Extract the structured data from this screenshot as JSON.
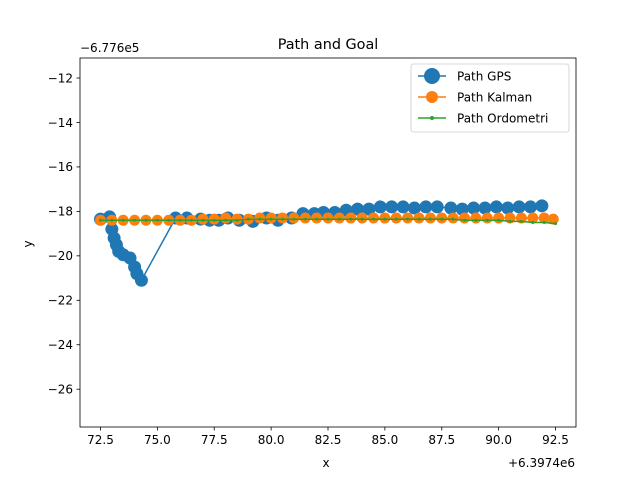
{
  "chart_data": {
    "type": "line",
    "title": "Path and Goal",
    "xlabel": "x",
    "ylabel": "y",
    "x_offset_label": "+6.3974e6",
    "y_offset_label": "−6.776e5",
    "xlim": [
      71.6,
      93.4
    ],
    "ylim": [
      -27.7,
      -11.1
    ],
    "xticks": [
      72.5,
      75.0,
      77.5,
      80.0,
      82.5,
      85.0,
      87.5,
      90.0,
      92.5
    ],
    "xtick_labels": [
      "72.5",
      "75.0",
      "77.5",
      "80.0",
      "82.5",
      "85.0",
      "87.5",
      "90.0",
      "92.5"
    ],
    "yticks": [
      -26,
      -24,
      -22,
      -20,
      -18,
      -16,
      -14,
      -12
    ],
    "ytick_labels": [
      "−26",
      "−24",
      "−22",
      "−20",
      "−18",
      "−16",
      "−14",
      "−12"
    ],
    "grid": false,
    "legend_position": "top-right",
    "series": [
      {
        "name": "Path GPS",
        "color": "#1f77b4",
        "marker": "circle-large",
        "x": [
          72.5,
          72.9,
          73.0,
          73.1,
          73.2,
          73.3,
          73.5,
          73.8,
          74.0,
          74.1,
          74.3,
          75.8,
          76.3,
          76.9,
          77.3,
          77.7,
          78.1,
          78.6,
          79.2,
          79.8,
          80.3,
          80.9,
          81.4,
          81.9,
          82.3,
          82.8,
          83.3,
          83.8,
          84.3,
          84.8,
          85.3,
          85.8,
          86.3,
          86.8,
          87.3,
          87.9,
          88.4,
          88.9,
          89.4,
          89.9,
          90.4,
          90.9,
          91.4,
          91.9
        ],
        "y": [
          -18.35,
          -18.25,
          -18.8,
          -19.2,
          -19.5,
          -19.8,
          -19.95,
          -20.1,
          -20.5,
          -20.8,
          -21.1,
          -18.3,
          -18.3,
          -18.35,
          -18.4,
          -18.4,
          -18.3,
          -18.4,
          -18.45,
          -18.3,
          -18.4,
          -18.3,
          -18.1,
          -18.1,
          -18.05,
          -18.05,
          -17.95,
          -17.9,
          -17.9,
          -17.8,
          -17.8,
          -17.8,
          -17.85,
          -17.8,
          -17.8,
          -17.85,
          -17.9,
          -17.85,
          -17.85,
          -17.8,
          -17.85,
          -17.8,
          -17.8,
          -17.75
        ]
      },
      {
        "name": "Path Kalman",
        "color": "#ff7f0e",
        "marker": "circle-medium",
        "x": [
          72.5,
          73.0,
          73.5,
          74.0,
          74.5,
          75.0,
          75.5,
          76.0,
          76.5,
          77.0,
          77.5,
          78.0,
          78.5,
          79.0,
          79.5,
          80.0,
          80.5,
          81.0,
          81.5,
          82.0,
          82.5,
          83.0,
          83.5,
          84.0,
          84.5,
          85.0,
          85.5,
          86.0,
          86.5,
          87.0,
          87.5,
          88.0,
          88.5,
          89.0,
          89.5,
          90.0,
          90.5,
          91.0,
          91.5,
          92.0,
          92.4
        ],
        "y": [
          -18.4,
          -18.4,
          -18.4,
          -18.4,
          -18.4,
          -18.4,
          -18.4,
          -18.4,
          -18.4,
          -18.35,
          -18.35,
          -18.3,
          -18.35,
          -18.35,
          -18.3,
          -18.3,
          -18.3,
          -18.3,
          -18.3,
          -18.3,
          -18.3,
          -18.3,
          -18.3,
          -18.3,
          -18.3,
          -18.3,
          -18.3,
          -18.3,
          -18.3,
          -18.3,
          -18.3,
          -18.3,
          -18.3,
          -18.3,
          -18.3,
          -18.3,
          -18.3,
          -18.3,
          -18.3,
          -18.3,
          -18.35
        ]
      },
      {
        "name": "Path Ordometri",
        "color": "#2ca02c",
        "marker": "dot",
        "x": [
          72.5,
          73.0,
          73.5,
          74.0,
          74.5,
          75.0,
          75.5,
          76.0,
          76.5,
          77.0,
          77.5,
          78.0,
          78.5,
          79.0,
          79.5,
          80.0,
          80.5,
          81.0,
          81.5,
          82.0,
          82.5,
          83.0,
          83.5,
          84.0,
          84.5,
          85.0,
          85.5,
          86.0,
          86.5,
          87.0,
          87.5,
          88.0,
          88.5,
          89.0,
          89.5,
          90.0,
          90.5,
          91.0,
          91.5,
          92.0,
          92.5
        ],
        "y": [
          -18.4,
          -18.4,
          -18.4,
          -18.4,
          -18.4,
          -18.4,
          -18.4,
          -18.4,
          -18.4,
          -18.4,
          -18.4,
          -18.4,
          -18.4,
          -18.35,
          -18.35,
          -18.35,
          -18.35,
          -18.35,
          -18.35,
          -18.35,
          -18.35,
          -18.35,
          -18.35,
          -18.35,
          -18.35,
          -18.35,
          -18.35,
          -18.35,
          -18.35,
          -18.35,
          -18.35,
          -18.35,
          -18.4,
          -18.4,
          -18.4,
          -18.4,
          -18.45,
          -18.45,
          -18.5,
          -18.5,
          -18.55
        ]
      }
    ]
  }
}
